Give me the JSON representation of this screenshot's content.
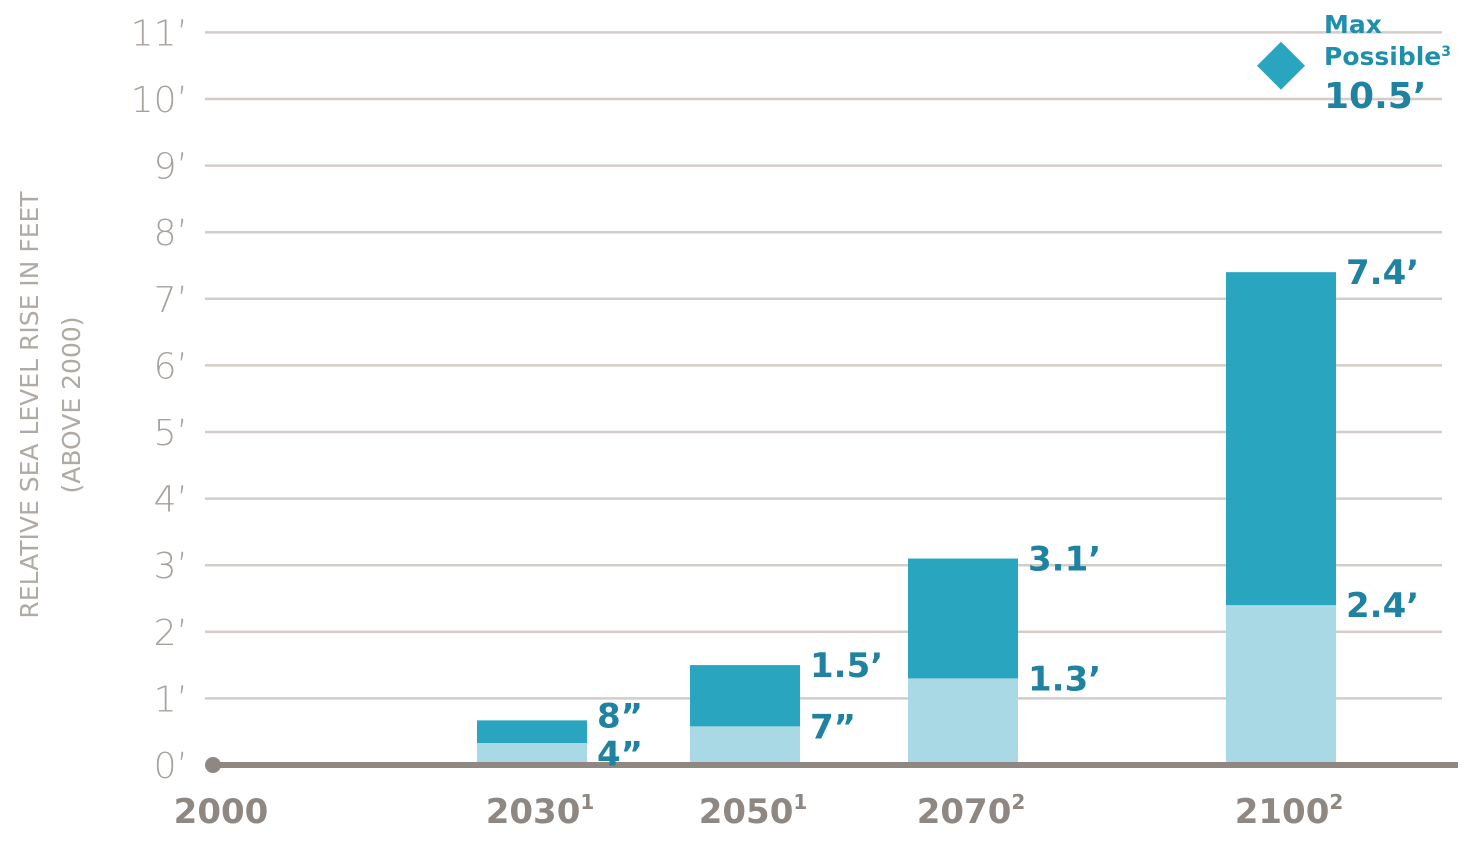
{
  "chart_data": {
    "type": "bar",
    "stacked": true,
    "ylabel": "RELATIVE SEA LEVEL RISE IN FEET",
    "ylabel_sub": "(ABOVE 2000)",
    "ylim": [
      0,
      11
    ],
    "y_ticks": [
      {
        "value": 0,
        "label": "0’"
      },
      {
        "value": 1,
        "label": "1’"
      },
      {
        "value": 2,
        "label": "2’"
      },
      {
        "value": 3,
        "label": "3’"
      },
      {
        "value": 4,
        "label": "4’"
      },
      {
        "value": 5,
        "label": "5’"
      },
      {
        "value": 6,
        "label": "6’"
      },
      {
        "value": 7,
        "label": "7’"
      },
      {
        "value": 8,
        "label": "8’"
      },
      {
        "value": 9,
        "label": "9’"
      },
      {
        "value": 10,
        "label": "10’"
      },
      {
        "value": 11,
        "label": "11’"
      }
    ],
    "grid": true,
    "x_categories": [
      {
        "label": "2000",
        "sup": "",
        "year": 2000
      },
      {
        "label": "2030",
        "sup": "1",
        "year": 2030
      },
      {
        "label": "2050",
        "sup": "1",
        "year": 2050
      },
      {
        "label": "2070",
        "sup": "2",
        "year": 2070
      },
      {
        "label": "2100",
        "sup": "2",
        "year": 2100
      }
    ],
    "origin_point": {
      "year": 2000,
      "value": 0
    },
    "bars": [
      {
        "year": 2030,
        "low": 0.33,
        "high": 0.67,
        "low_label": "4”",
        "high_label": "8”"
      },
      {
        "year": 2050,
        "low": 0.58,
        "high": 1.5,
        "low_label": "7”",
        "high_label": "1.5’"
      },
      {
        "year": 2070,
        "low": 1.3,
        "high": 3.1,
        "low_label": "1.3’",
        "high_label": "3.1’"
      },
      {
        "year": 2100,
        "low": 2.4,
        "high": 7.4,
        "low_label": "2.4’",
        "high_label": "7.4’"
      }
    ],
    "max_possible": {
      "year": 2100,
      "value": 10.5,
      "label_line1": "Max",
      "label_line2": "Possible",
      "label_sup": "3",
      "value_label": "10.5’"
    },
    "colors": {
      "low": "#a8d9e5",
      "high": "#2aa5c0",
      "marker": "#2aa5c0",
      "label": "#1f82a0",
      "axis": "#8f8781",
      "grid": "#d2cdc8",
      "tick": "#a8a29d"
    }
  }
}
